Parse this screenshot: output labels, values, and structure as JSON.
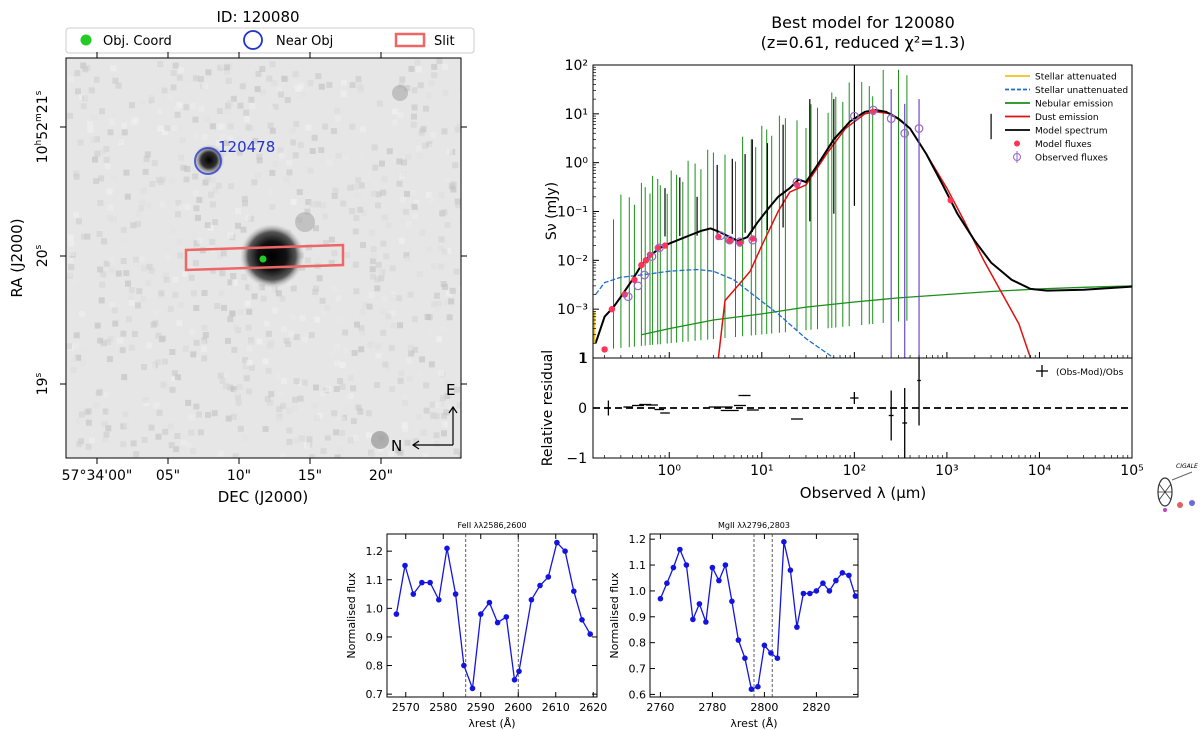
{
  "chart_data": [
    {
      "type": "image",
      "title": "ID: 120080",
      "xlabel": "DEC (J2000)",
      "ylabel": "RA (J2000)",
      "xticks": [
        "57°34'00\"",
        "05\"",
        "10\"",
        "15\"",
        "20\""
      ],
      "yticks": [
        {
          "main": "10",
          "sup1": "h",
          "mid": "52",
          "sup2": "m",
          "end": "21",
          "sup3": "s"
        },
        {
          "main": "20",
          "sup3": "s"
        },
        {
          "main": "19",
          "sup3": "s"
        }
      ],
      "legend": [
        "Obj. Coord",
        "Near Obj",
        "Slit"
      ],
      "near_object_label": "120478",
      "compass": {
        "east": "E",
        "north": "N"
      },
      "colors": {
        "obj": "#22cc22",
        "near": "#2233cc",
        "slit": "#ee6666"
      }
    },
    {
      "type": "line",
      "title": "Best model for 120080",
      "subtitle": "(z=0.61, reduced χ²=1.3)",
      "xlabel": "Observed λ (μm)",
      "ylabel": "Sν (mJy)",
      "xscale": "log",
      "yscale": "log",
      "xlim": [
        0.15,
        100000
      ],
      "ylim": [
        0.0001,
        100
      ],
      "ytick_labels": [
        "10²",
        "10¹",
        "10⁰",
        "10⁻¹",
        "10⁻²",
        "10⁻³",
        "1"
      ],
      "xtick_labels": [
        "10⁰",
        "10¹",
        "10²",
        "10³",
        "10⁴",
        "10⁵"
      ],
      "legend": [
        {
          "name": "Stellar attenuated",
          "color": "#f0c020",
          "style": "solid"
        },
        {
          "name": "Stellar unattenuated",
          "color": "#1f6fc8",
          "style": "dashed"
        },
        {
          "name": "Nebular emission",
          "color": "#1a8f1a",
          "style": "solid"
        },
        {
          "name": "Dust emission",
          "color": "#e01010",
          "style": "solid"
        },
        {
          "name": "Model spectrum",
          "color": "#000000",
          "style": "solid"
        },
        {
          "name": "Model fluxes",
          "color": "#ff3355",
          "style": "marker"
        },
        {
          "name": "Observed fluxes",
          "color": "#9966cc",
          "style": "errmarker"
        }
      ],
      "model_spectrum": [
        [
          0.16,
          0.0002
        ],
        [
          0.2,
          0.0007
        ],
        [
          0.25,
          0.0011
        ],
        [
          0.3,
          0.0018
        ],
        [
          0.4,
          0.004
        ],
        [
          0.5,
          0.008
        ],
        [
          0.6,
          0.012
        ],
        [
          0.8,
          0.018
        ],
        [
          1.0,
          0.022
        ],
        [
          1.3,
          0.027
        ],
        [
          1.7,
          0.033
        ],
        [
          2.2,
          0.04
        ],
        [
          2.8,
          0.045
        ],
        [
          3.5,
          0.038
        ],
        [
          4.5,
          0.03
        ],
        [
          5.5,
          0.025
        ],
        [
          7,
          0.03
        ],
        [
          9,
          0.06
        ],
        [
          12,
          0.12
        ],
        [
          15,
          0.2
        ],
        [
          20,
          0.3
        ],
        [
          25,
          0.45
        ],
        [
          30,
          0.4
        ],
        [
          40,
          0.9
        ],
        [
          60,
          3
        ],
        [
          90,
          7
        ],
        [
          130,
          11
        ],
        [
          170,
          12
        ],
        [
          220,
          11
        ],
        [
          300,
          8
        ],
        [
          400,
          5
        ],
        [
          600,
          1.5
        ],
        [
          900,
          0.35
        ],
        [
          1300,
          0.09
        ],
        [
          2000,
          0.025
        ],
        [
          3000,
          0.009
        ],
        [
          5000,
          0.004
        ],
        [
          8000,
          0.0026
        ],
        [
          12000,
          0.0024
        ],
        [
          30000,
          0.0025
        ],
        [
          100000,
          0.0029
        ]
      ],
      "stellar_unattenuated": [
        [
          0.16,
          0.002
        ],
        [
          0.2,
          0.0035
        ],
        [
          0.3,
          0.0045
        ],
        [
          0.5,
          0.005
        ],
        [
          1.0,
          0.006
        ],
        [
          2.0,
          0.0065
        ],
        [
          3.0,
          0.006
        ],
        [
          5.0,
          0.004
        ],
        [
          8,
          0.002
        ],
        [
          15,
          0.0008
        ],
        [
          30,
          0.00025
        ],
        [
          60,
          0.0001
        ],
        [
          100,
          5e-05
        ]
      ],
      "nebular_continuum": [
        [
          0.5,
          0.0003
        ],
        [
          1,
          0.0004
        ],
        [
          3,
          0.0006
        ],
        [
          10,
          0.0008
        ],
        [
          30,
          0.0011
        ],
        [
          100,
          0.0014
        ],
        [
          300,
          0.0017
        ],
        [
          1000,
          0.002
        ],
        [
          3000,
          0.0023
        ],
        [
          10000,
          0.0026
        ],
        [
          30000,
          0.0028
        ],
        [
          100000,
          0.003
        ]
      ],
      "dust_emission": [
        [
          3.4,
          0.0001
        ],
        [
          4,
          0.0015
        ],
        [
          5.5,
          0.003
        ],
        [
          7.5,
          0.006
        ],
        [
          10,
          0.02
        ],
        [
          15,
          0.1
        ],
        [
          20,
          0.25
        ],
        [
          30,
          0.35
        ],
        [
          50,
          1.5
        ],
        [
          80,
          5
        ],
        [
          130,
          10
        ],
        [
          170,
          11
        ],
        [
          250,
          10
        ],
        [
          400,
          5
        ],
        [
          600,
          1.5
        ],
        [
          1000,
          0.3
        ],
        [
          1500,
          0.07
        ],
        [
          2500,
          0.01
        ],
        [
          4000,
          0.002
        ],
        [
          6000,
          0.0005
        ],
        [
          8000,
          0.0001
        ]
      ],
      "model_fluxes": [
        [
          0.2,
          0.00015
        ],
        [
          0.24,
          0.001
        ],
        [
          0.33,
          0.002
        ],
        [
          0.42,
          0.004
        ],
        [
          0.5,
          0.008
        ],
        [
          0.56,
          0.01
        ],
        [
          0.62,
          0.013
        ],
        [
          0.75,
          0.018
        ],
        [
          0.9,
          0.02
        ],
        [
          3.4,
          0.03
        ],
        [
          4.5,
          0.025
        ],
        [
          5.8,
          0.022
        ],
        [
          8.0,
          0.028
        ],
        [
          24,
          0.35
        ],
        [
          160,
          11
        ],
        [
          1100,
          0.17
        ]
      ],
      "observed_fluxes": [
        [
          0.36,
          0.0018
        ],
        [
          0.46,
          0.003
        ],
        [
          0.54,
          0.005
        ],
        [
          0.65,
          0.012
        ],
        [
          0.78,
          0.018
        ],
        [
          3.6,
          0.032
        ],
        [
          4.5,
          0.026
        ],
        [
          5.8,
          0.024
        ],
        [
          8.0,
          0.026
        ],
        [
          24,
          0.4
        ],
        [
          100,
          9
        ],
        [
          160,
          12
        ],
        [
          250,
          8
        ],
        [
          350,
          4
        ],
        [
          500,
          5
        ]
      ],
      "residual": {
        "ylabel": "Relative residual",
        "legend": "(Obs-Mod)/Obs",
        "ylim": [
          -1,
          1
        ],
        "yticks": [
          "1",
          "0",
          "−1"
        ],
        "points": [
          [
            0.22,
            0.0,
            0.03,
            0.15
          ],
          [
            0.36,
            0.02,
            0.08,
            0.0
          ],
          [
            0.46,
            0.05,
            0.1,
            0.0
          ],
          [
            0.55,
            0.07,
            0.1,
            0.0
          ],
          [
            0.65,
            0.06,
            0.1,
            0.0
          ],
          [
            0.78,
            -0.03,
            0.08,
            0.0
          ],
          [
            0.9,
            -0.1,
            0.08,
            0.0
          ],
          [
            3.6,
            0.02,
            0.2,
            0.0
          ],
          [
            4.5,
            -0.05,
            0.15,
            0.0
          ],
          [
            5.8,
            0.05,
            0.1,
            0.0
          ],
          [
            6.5,
            0.25,
            0.1,
            0.0
          ],
          [
            8,
            -0.04,
            0.1,
            0.0
          ],
          [
            24,
            -0.22,
            0.1,
            0.0
          ],
          [
            100,
            0.2,
            0.07,
            0.12
          ],
          [
            250,
            -0.15,
            0.04,
            0.5
          ],
          [
            350,
            -0.3,
            0.04,
            0.7
          ],
          [
            500,
            0.55,
            0.03,
            0.9
          ]
        ]
      },
      "logo": "CIGALE"
    },
    {
      "type": "line",
      "title": "FeII λλ2586,2600",
      "xlabel": "λrest (Å)",
      "ylabel": "Normalised flux",
      "xlim": [
        2565,
        2621
      ],
      "ylim": [
        0.69,
        1.26
      ],
      "xticks": [
        2570,
        2580,
        2590,
        2600,
        2610,
        2620
      ],
      "xtick_labels": [
        "2570",
        "2580",
        "2590",
        "2600",
        "2610",
        "2620"
      ],
      "yticks": [
        0.7,
        0.8,
        0.9,
        1.0,
        1.1,
        1.2
      ],
      "ytick_labels": [
        "0.7",
        "0.8",
        "0.9",
        "1.0",
        "1.1",
        "1.2"
      ],
      "vlines": [
        2586.0,
        2600.0
      ],
      "x": [
        2567.5,
        2569.8,
        2572.0,
        2574.3,
        2576.5,
        2578.8,
        2581.0,
        2583.3,
        2585.5,
        2587.8,
        2590.0,
        2592.3,
        2594.5,
        2596.8,
        2599.0,
        2600.2,
        2603.5,
        2605.8,
        2608.0,
        2610.3,
        2612.5,
        2614.8,
        2617.0,
        2619.2
      ],
      "values": [
        0.98,
        1.15,
        1.05,
        1.09,
        1.09,
        1.03,
        1.21,
        1.05,
        0.8,
        0.72,
        0.98,
        1.02,
        0.95,
        0.97,
        0.75,
        0.78,
        1.03,
        1.08,
        1.11,
        1.23,
        1.2,
        1.06,
        0.96,
        0.91
      ],
      "color": "#1414e0"
    },
    {
      "type": "line",
      "title": "MgII λλ2796,2803",
      "xlabel": "λrest (Å)",
      "ylabel": "Normalised flux",
      "xlim": [
        2756,
        2836
      ],
      "ylim": [
        0.59,
        1.22
      ],
      "xticks": [
        2760,
        2780,
        2800,
        2820
      ],
      "xtick_labels": [
        "2760",
        "2780",
        "2800",
        "2820"
      ],
      "yticks": [
        0.6,
        0.7,
        0.8,
        0.9,
        1.0,
        1.1,
        1.2
      ],
      "ytick_labels": [
        "0.6",
        "0.7",
        "0.8",
        "0.9",
        "1.0",
        "1.1",
        "1.2"
      ],
      "vlines": [
        2796.0,
        2803.0
      ],
      "x": [
        2760,
        2762.5,
        2765,
        2767.5,
        2770,
        2772.5,
        2775,
        2777.5,
        2780,
        2782.5,
        2785,
        2787.5,
        2790,
        2792.5,
        2795,
        2797.5,
        2800,
        2802.5,
        2805,
        2807.5,
        2810,
        2812.5,
        2815,
        2817.5,
        2820,
        2822.5,
        2825,
        2827.5,
        2830,
        2832.5,
        2835
      ],
      "values": [
        0.97,
        1.03,
        1.09,
        1.16,
        1.1,
        0.89,
        0.95,
        0.88,
        1.09,
        1.04,
        1.1,
        0.96,
        0.81,
        0.74,
        0.62,
        0.63,
        0.79,
        0.76,
        0.74,
        1.19,
        1.08,
        0.86,
        0.99,
        0.99,
        1.0,
        1.03,
        1.0,
        1.04,
        1.07,
        1.06,
        0.98
      ],
      "color": "#1414e0"
    }
  ]
}
